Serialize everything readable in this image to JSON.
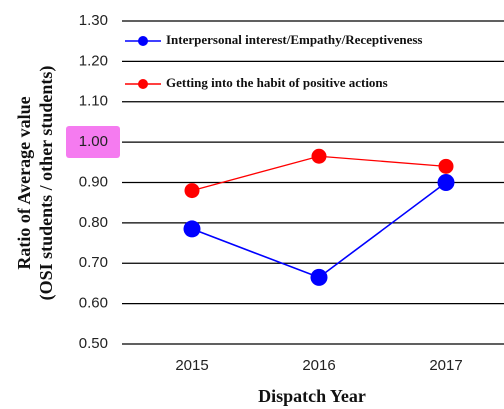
{
  "chart_data": {
    "type": "line",
    "categories": [
      "2015",
      "2016",
      "2017"
    ],
    "series": [
      {
        "name": "Interpersonal interest/Empathy/Receptiveness",
        "color": "#0000ff",
        "values": [
          0.785,
          0.665,
          0.9
        ]
      },
      {
        "name": "Getting into the habit of positive actions",
        "color": "#ff0000",
        "values": [
          0.88,
          0.965,
          0.94
        ]
      }
    ],
    "ylim": [
      0.5,
      1.3
    ],
    "yticks": [
      {
        "value": 0.5,
        "label": "0.50"
      },
      {
        "value": 0.6,
        "label": "0.60"
      },
      {
        "value": 0.7,
        "label": "0.70"
      },
      {
        "value": 0.8,
        "label": "0.80"
      },
      {
        "value": 0.9,
        "label": "0.90"
      },
      {
        "value": 1.0,
        "label": "1.00"
      },
      {
        "value": 1.1,
        "label": "1.10"
      },
      {
        "value": 1.2,
        "label": "1.20"
      },
      {
        "value": 1.3,
        "label": "1.30"
      }
    ],
    "ylabel": [
      "Ratio of Average value",
      "(OSI students / other students)"
    ],
    "xlabel": "Dispatch Year",
    "grid": true,
    "legend": "upper left"
  }
}
